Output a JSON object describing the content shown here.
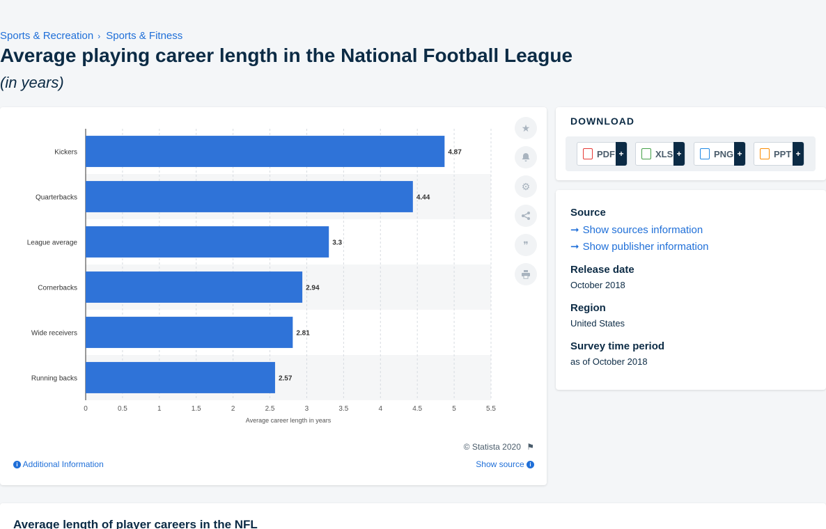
{
  "breadcrumb": {
    "items": [
      "Sports & Recreation",
      "Sports & Fitness"
    ],
    "separator": "›"
  },
  "title": "Average playing career length in the National Football League",
  "subtitle": "(in years)",
  "chart_data": {
    "type": "bar",
    "orientation": "horizontal",
    "categories": [
      "Kickers",
      "Quarterbacks",
      "League average",
      "Cornerbacks",
      "Wide receivers",
      "Running backs"
    ],
    "values": [
      4.87,
      4.44,
      3.3,
      2.94,
      2.81,
      2.57
    ],
    "value_labels": [
      "4.87",
      "4.44",
      "3.3",
      "2.94",
      "2.81",
      "2.57"
    ],
    "xlabel": "Average career length in years",
    "ylabel": "",
    "xlim": [
      0,
      5.5
    ],
    "xticks": [
      0,
      0.5,
      1,
      1.5,
      2,
      2.5,
      3,
      3.5,
      4,
      4.5,
      5,
      5.5
    ],
    "xtick_labels": [
      "0",
      "0.5",
      "1",
      "1.5",
      "2",
      "2.5",
      "3",
      "3.5",
      "4",
      "4.5",
      "5",
      "5.5"
    ],
    "bar_color": "#2f73d8",
    "grid": true,
    "legend": "none"
  },
  "chart_footer": {
    "credit": "© Statista 2020",
    "additional_info": "Additional Information",
    "show_source": "Show source"
  },
  "tools": [
    "star-icon",
    "bell-icon",
    "gear-icon",
    "share-icon",
    "quote-icon",
    "print-icon"
  ],
  "download": {
    "title": "DOWNLOAD",
    "formats": [
      {
        "label": "PDF",
        "color": "#e53935"
      },
      {
        "label": "XLS",
        "color": "#43a047"
      },
      {
        "label": "PNG",
        "color": "#1e88e5"
      },
      {
        "label": "PPT",
        "color": "#fb8c00"
      }
    ],
    "plus": "+"
  },
  "meta": {
    "source_heading": "Source",
    "show_sources": "Show sources information",
    "show_publisher": "Show publisher information",
    "release_heading": "Release date",
    "release_value": "October 2018",
    "region_heading": "Region",
    "region_value": "United States",
    "survey_heading": "Survey time period",
    "survey_value": "as of October 2018"
  },
  "bottom": {
    "title": "Average length of player careers in the NFL"
  }
}
